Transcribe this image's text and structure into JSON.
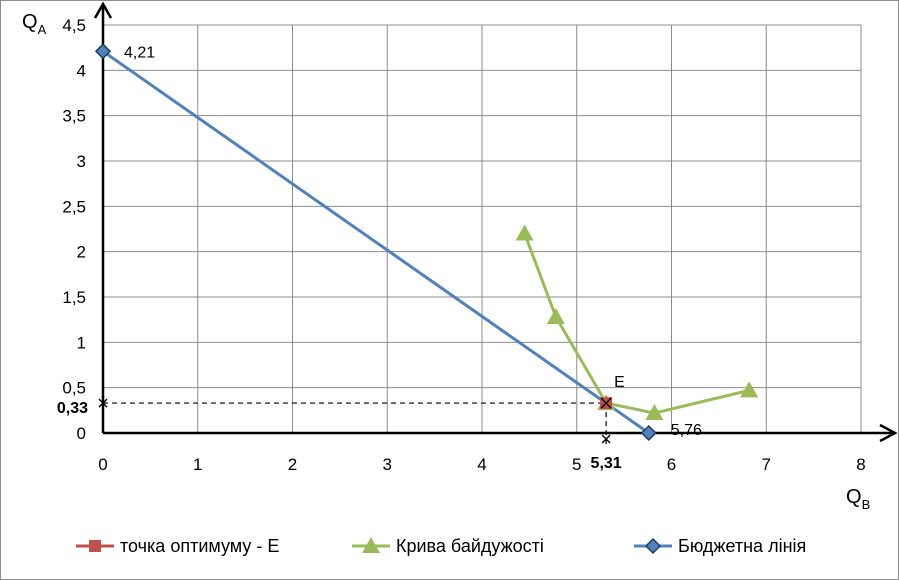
{
  "chart_data": {
    "type": "line",
    "xlabel": {
      "main": "Q",
      "sub": "B"
    },
    "ylabel": {
      "main": "Q",
      "sub": "A"
    },
    "xlim": [
      0,
      8
    ],
    "ylim": [
      0,
      4.5
    ],
    "x_ticks": [
      0,
      1,
      2,
      3,
      4,
      5,
      6,
      7,
      8
    ],
    "x_tick_labels": [
      "0",
      "1",
      "2",
      "3",
      "4",
      "5",
      "6",
      "7",
      "8"
    ],
    "y_ticks": [
      0,
      0.5,
      1,
      1.5,
      2,
      2.5,
      3,
      3.5,
      4,
      4.5
    ],
    "y_tick_labels": [
      "0",
      "0,5",
      "1",
      "1,5",
      "2",
      "2,5",
      "3",
      "3,5",
      "4",
      "4,5"
    ],
    "grid": true,
    "legend_position": "bottom",
    "series": [
      {
        "name": "точка оптимуму - E",
        "color": "#C0504D",
        "marker": "square",
        "points": [
          [
            5.31,
            0.33
          ]
        ]
      },
      {
        "name": "Крива байдужості",
        "color": "#9BBB59",
        "marker": "triangle",
        "points": [
          [
            4.45,
            2.2
          ],
          [
            4.78,
            1.28
          ],
          [
            5.31,
            0.33
          ],
          [
            5.82,
            0.22
          ],
          [
            6.82,
            0.47
          ]
        ]
      },
      {
        "name": "Бюджетна лінія",
        "color": "#4F81BD",
        "marker": "diamond",
        "points": [
          [
            0,
            4.21
          ],
          [
            5.76,
            0
          ]
        ]
      }
    ],
    "annotations": {
      "budget_y_intercept": {
        "x": 0,
        "y": 4.21,
        "label": "4,21"
      },
      "budget_x_intercept": {
        "x": 5.76,
        "y": 0,
        "label": "5,76"
      },
      "optimum_label": {
        "x": 5.31,
        "y": 0.33,
        "label": "E"
      },
      "optimum_x": {
        "value": 5.31,
        "label": "5,31"
      },
      "optimum_y": {
        "value": 0.33,
        "label": "0,33"
      }
    }
  }
}
